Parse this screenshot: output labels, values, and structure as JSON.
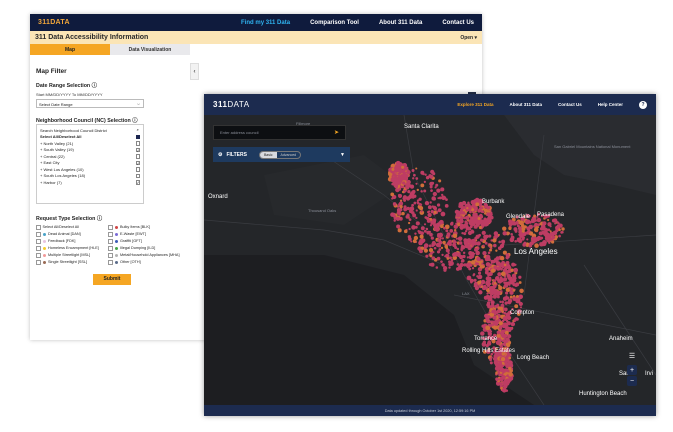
{
  "back": {
    "logo": "311DATA",
    "nav": [
      "Find my 311 Data",
      "Comparison Tool",
      "About 311 Data",
      "Contact Us"
    ],
    "title": "311 Data Accessibility Information",
    "open": "Open ▾",
    "tabs": [
      "Map",
      "Data Visualization"
    ],
    "map_filter": "Map Filter",
    "date_range_title": "Date Range Selection",
    "date_hint": "Start MM/DD/YYYY To MM/DD/YYYY",
    "date_select": "Select Date Range",
    "nc_title": "Neighborhood Council (NC) Selection",
    "nc_search": "Search Neighborhood Council District",
    "nc_select_all": "Select All/Deselect All",
    "nc_items": [
      {
        "label": "+ North Valley (21)",
        "checked": false
      },
      {
        "label": "+ South Valley (19)",
        "checked": true
      },
      {
        "label": "+ Central (22)",
        "checked": false
      },
      {
        "label": "+ East City",
        "checked": true
      },
      {
        "label": "+ West Los Angeles (10)",
        "checked": false
      },
      {
        "label": "+ South Los Angeles (18)",
        "checked": false
      },
      {
        "label": "+ Harbor (7)",
        "checked": true
      }
    ],
    "request_title": "Request Type Selection",
    "request_types": [
      {
        "label": "Select All/Deselect All",
        "color": ""
      },
      {
        "label": "Bulky Items [BLK]",
        "color": "#d04545"
      },
      {
        "label": "Dead Animal [DAN]",
        "color": "#4aa3c8"
      },
      {
        "label": "E-Waste [EWT]",
        "color": "#7b6bd6"
      },
      {
        "label": "Feedback [FDK]",
        "color": "#e8c5e0"
      },
      {
        "label": "Graffiti [GFT]",
        "color": "#3d5cb5"
      },
      {
        "label": "Homeless Encampment [HLE]",
        "color": "#f5cc2e"
      },
      {
        "label": "Illegal Dumping [ILD]",
        "color": "#46a648"
      },
      {
        "label": "Multiple Streetlight [MSL]",
        "color": "#f29a9a"
      },
      {
        "label": "Metal/Household Appliances [MHA]",
        "color": "#b3b3b3"
      },
      {
        "label": "Single Streetlight [SSL]",
        "color": "#9a6b55"
      },
      {
        "label": "Other [OTH]",
        "color": "#5b6c8a"
      }
    ],
    "submit": "Submit"
  },
  "front": {
    "logo_a": "311",
    "logo_b": "DATA",
    "nav": [
      "Explore 311 Data",
      "About 311 Data",
      "Contact Us",
      "Help Center"
    ],
    "help_icon": "?",
    "address_placeholder": "Enter address council",
    "filters": "FILTERS",
    "toggle": [
      "Basic",
      "Advanced"
    ],
    "footer": "Data updated through October 1st 2020, 12:59:16 PM",
    "places": [
      {
        "name": "Santa Clarita",
        "big": true
      },
      {
        "name": "Fillmore",
        "big": false
      },
      {
        "name": "San Gabriel Mountains National Monument",
        "big": false
      },
      {
        "name": "Oxnard",
        "big": true
      },
      {
        "name": "Thousand Oaks",
        "big": false
      },
      {
        "name": "Burbank",
        "big": true
      },
      {
        "name": "Glendale",
        "big": true
      },
      {
        "name": "Pasadena",
        "big": true
      },
      {
        "name": "Los Angeles",
        "big": true
      },
      {
        "name": "LAX",
        "big": false
      },
      {
        "name": "Compton",
        "big": true
      },
      {
        "name": "Torrance",
        "big": true
      },
      {
        "name": "Anaheim",
        "big": true
      },
      {
        "name": "Rolling Hills Estates",
        "big": true
      },
      {
        "name": "Long Beach",
        "big": true
      },
      {
        "name": "Huntington Beach",
        "big": true
      },
      {
        "name": "San",
        "big": true
      },
      {
        "name": "Irvi",
        "big": true
      }
    ]
  },
  "colors": {
    "navy": "#1c2b4f",
    "accent": "#f5a623",
    "cluster": "#d9416e"
  }
}
